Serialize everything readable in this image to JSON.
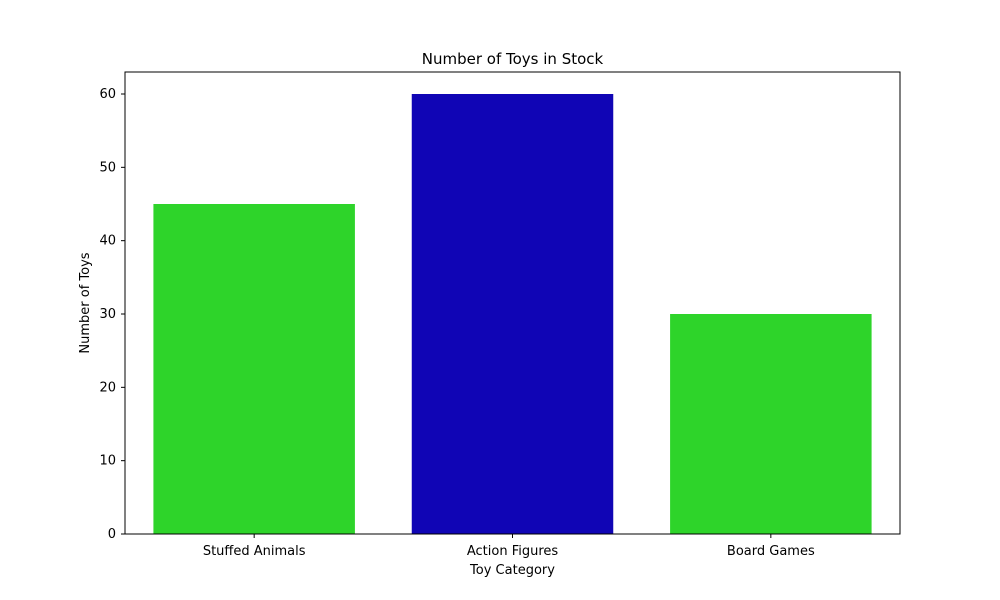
{
  "chart_data": {
    "type": "bar",
    "title": "Number of Toys in Stock",
    "xlabel": "Toy Category",
    "ylabel": "Number of Toys",
    "categories": [
      "Stuffed Animals",
      "Action Figures",
      "Board Games"
    ],
    "values": [
      45,
      60,
      30
    ],
    "bar_colors": [
      "#2ed42a",
      "#1005b5",
      "#2ed42a"
    ],
    "ylim": [
      0,
      63
    ],
    "yticks": [
      0,
      10,
      20,
      30,
      40,
      50,
      60
    ],
    "grid": false,
    "legend": "none"
  }
}
